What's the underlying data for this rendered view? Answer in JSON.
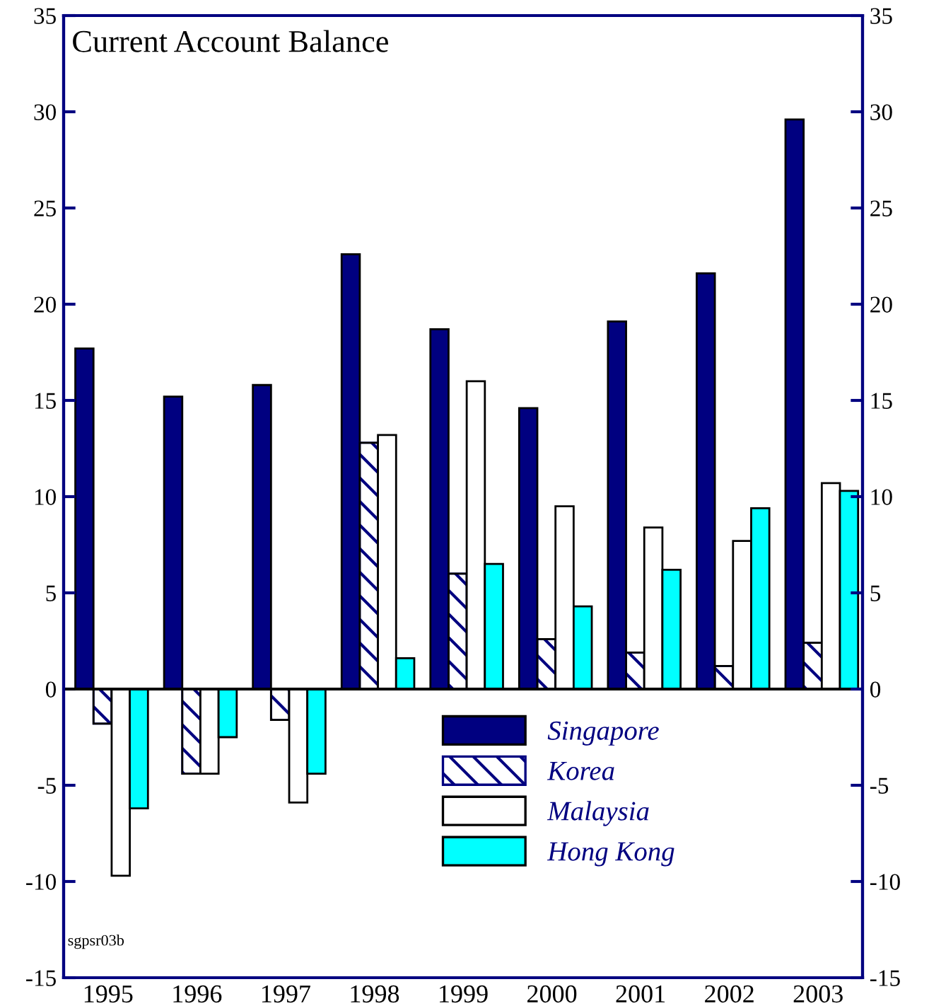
{
  "chart_data": {
    "type": "bar",
    "title": "Current Account Balance",
    "categories": [
      "1995",
      "1996",
      "1997",
      "1998",
      "1999",
      "2000",
      "2001",
      "2002",
      "2003"
    ],
    "series": [
      {
        "name": "Singapore",
        "color": "#000080",
        "values": [
          17.7,
          15.2,
          15.8,
          22.6,
          18.7,
          14.6,
          19.1,
          21.6,
          29.6
        ]
      },
      {
        "name": "Korea",
        "color": "#000080",
        "values": [
          -1.8,
          -4.4,
          -1.6,
          12.8,
          6.0,
          2.6,
          1.9,
          1.2,
          2.4
        ]
      },
      {
        "name": "Malaysia",
        "color": "#ffffff",
        "values": [
          -9.7,
          -4.4,
          -5.9,
          13.2,
          16.0,
          9.5,
          8.4,
          7.7,
          10.7
        ]
      },
      {
        "name": "Hong Kong",
        "color": "#00ffff",
        "values": [
          -6.2,
          -2.5,
          -4.4,
          1.6,
          6.5,
          4.3,
          6.2,
          9.4,
          10.3
        ]
      }
    ],
    "ylim": [
      -15,
      35
    ],
    "yticks": [
      -15,
      -10,
      -5,
      0,
      5,
      10,
      15,
      20,
      25,
      30,
      35
    ],
    "y2lim": [
      -15,
      35
    ],
    "y2ticks": [
      -15,
      -10,
      -5,
      0,
      5,
      10,
      15,
      20,
      25,
      30,
      35
    ],
    "annotations": [
      "sgpsr03b"
    ],
    "legend": "bottom"
  }
}
